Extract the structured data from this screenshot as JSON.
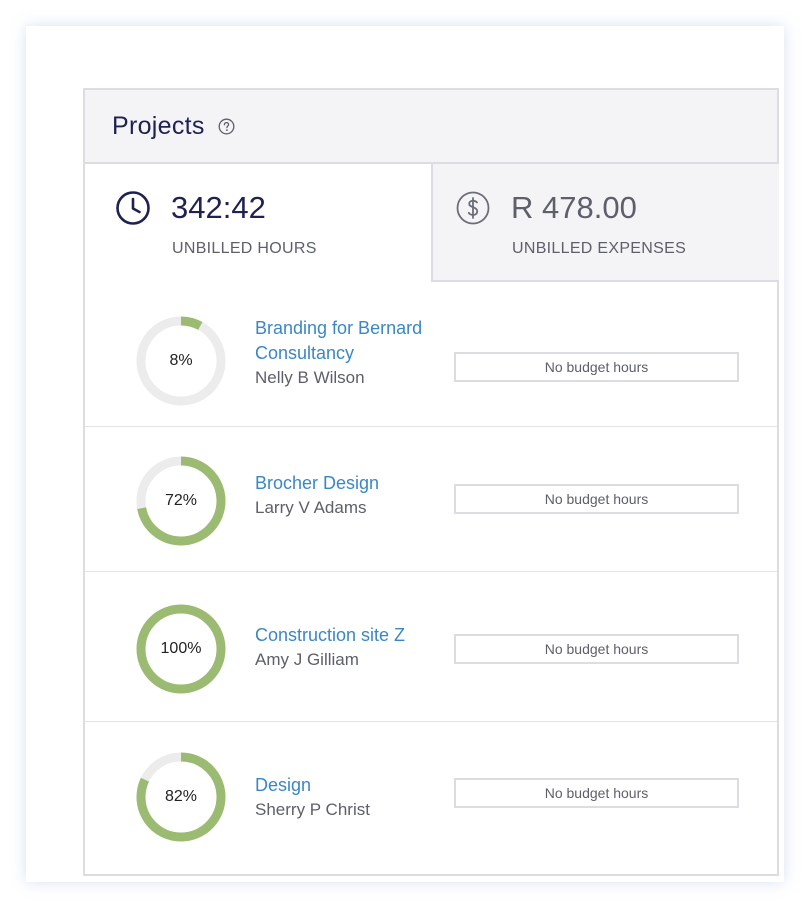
{
  "header": {
    "title": "Projects",
    "help_icon": "question-circle-icon"
  },
  "stats": {
    "hours": {
      "value": "342:42",
      "label": "UNBILLED HOURS",
      "icon": "clock-icon"
    },
    "expenses": {
      "value": "R 478.00",
      "label": "UNBILLED EXPENSES",
      "icon": "dollar-circle-icon"
    }
  },
  "colors": {
    "progress": "#9bbb72",
    "track": "#ececec",
    "link": "#3b87c4",
    "title": "#1f2151"
  },
  "projects": [
    {
      "percent_label": "8%",
      "progress": 0.08,
      "name": "Branding for Bernard Consultancy",
      "owner": "Nelly B Wilson",
      "budget": "No budget hours"
    },
    {
      "percent_label": "72%",
      "progress": 0.72,
      "name": "Brocher Design",
      "owner": "Larry V Adams",
      "budget": "No budget hours"
    },
    {
      "percent_label": "100%",
      "progress": 1.0,
      "name": "Construction site Z",
      "owner": "Amy J Gilliam",
      "budget": "No budget hours"
    },
    {
      "percent_label": "82%",
      "progress": 0.82,
      "name": "Design",
      "owner": "Sherry P Christ",
      "budget": "No budget hours"
    }
  ]
}
